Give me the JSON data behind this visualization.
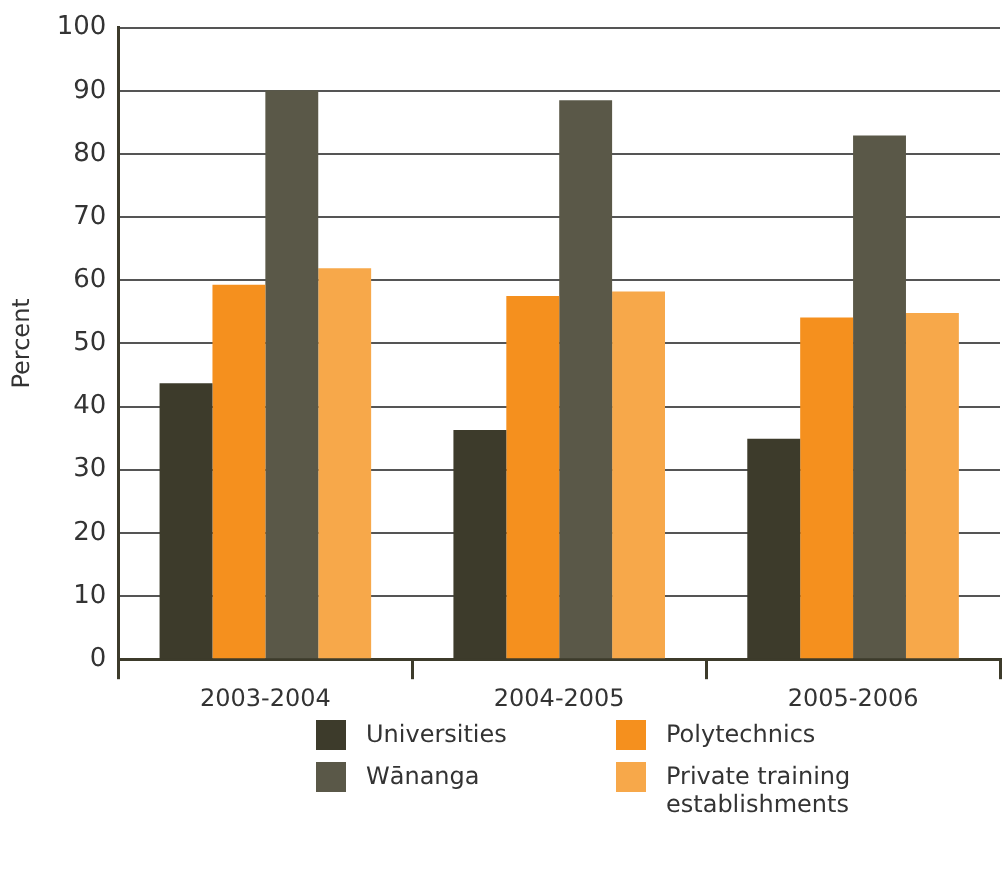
{
  "chart_data": {
    "type": "bar",
    "ylabel": "Percent",
    "categories": [
      "2003-2004",
      "2004-2005",
      "2005-2006"
    ],
    "series": [
      {
        "name": "Universities",
        "color": "#3d3b2b",
        "values": [
          43.7,
          36.3,
          34.9
        ]
      },
      {
        "name": "Polytechnics",
        "color": "#f5901e",
        "values": [
          59.3,
          57.5,
          54.1
        ]
      },
      {
        "name": "Wānanga",
        "color": "#5a5848",
        "values": [
          90.1,
          88.5,
          82.9
        ]
      },
      {
        "name": "Private training establishments",
        "color": "#f7a84a",
        "values": [
          61.9,
          58.2,
          54.8
        ]
      }
    ],
    "ylim": [
      0,
      100
    ],
    "yticks": [
      0,
      10,
      20,
      30,
      40,
      50,
      60,
      70,
      80,
      90,
      100
    ],
    "grid": "y",
    "legend": "bottom"
  }
}
